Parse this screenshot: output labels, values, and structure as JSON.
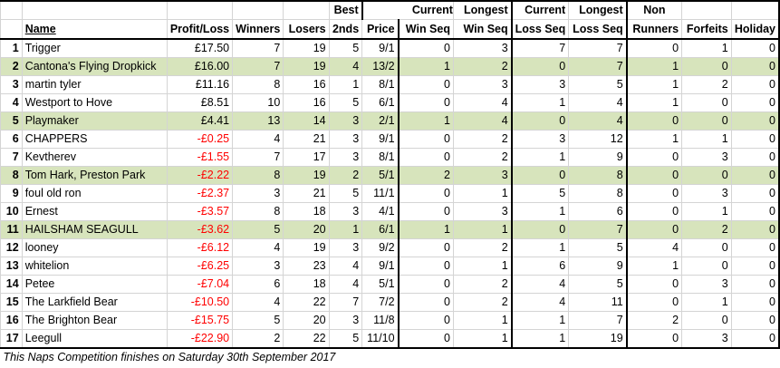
{
  "headers": {
    "row1": {
      "best": "Best",
      "current_win": "Current",
      "longest_win": "Longest",
      "current_loss": "Current",
      "longest_loss": "Longest",
      "non": "Non"
    },
    "row2": {
      "name": "Name",
      "profit_loss": "Profit/Loss",
      "winners": "Winners",
      "losers": "Losers",
      "seconds": "2nds",
      "price": "Price",
      "win_seq": "Win Seq",
      "win_seq2": "Win Seq",
      "loss_seq": "Loss Seq",
      "loss_seq2": "Loss Seq",
      "runners": "Runners",
      "forfeits": "Forfeits",
      "holiday": "Holiday"
    }
  },
  "rows": [
    {
      "rank": "1",
      "name": "Trigger",
      "pl": "£17.50",
      "neg": false,
      "winners": "7",
      "losers": "19",
      "seconds": "5",
      "price": "9/1",
      "cur_win": "0",
      "long_win": "3",
      "cur_loss": "7",
      "long_loss": "7",
      "non_runners": "0",
      "forfeits": "1",
      "holiday": "0",
      "green": false
    },
    {
      "rank": "2",
      "name": "Cantona's Flying Dropkick",
      "pl": "£16.00",
      "neg": false,
      "winners": "7",
      "losers": "19",
      "seconds": "4",
      "price": "13/2",
      "cur_win": "1",
      "long_win": "2",
      "cur_loss": "0",
      "long_loss": "7",
      "non_runners": "1",
      "forfeits": "0",
      "holiday": "0",
      "green": true
    },
    {
      "rank": "3",
      "name": "martin tyler",
      "pl": "£11.16",
      "neg": false,
      "winners": "8",
      "losers": "16",
      "seconds": "1",
      "price": "8/1",
      "cur_win": "0",
      "long_win": "3",
      "cur_loss": "3",
      "long_loss": "5",
      "non_runners": "1",
      "forfeits": "2",
      "holiday": "0",
      "green": false
    },
    {
      "rank": "4",
      "name": "Westport to Hove",
      "pl": "£8.51",
      "neg": false,
      "winners": "10",
      "losers": "16",
      "seconds": "5",
      "price": "6/1",
      "cur_win": "0",
      "long_win": "4",
      "cur_loss": "1",
      "long_loss": "4",
      "non_runners": "1",
      "forfeits": "0",
      "holiday": "0",
      "green": false
    },
    {
      "rank": "5",
      "name": "Playmaker",
      "pl": "£4.41",
      "neg": false,
      "winners": "13",
      "losers": "14",
      "seconds": "3",
      "price": "2/1",
      "cur_win": "1",
      "long_win": "4",
      "cur_loss": "0",
      "long_loss": "4",
      "non_runners": "0",
      "forfeits": "0",
      "holiday": "0",
      "green": true
    },
    {
      "rank": "6",
      "name": "CHAPPERS",
      "pl": "-£0.25",
      "neg": true,
      "winners": "4",
      "losers": "21",
      "seconds": "3",
      "price": "9/1",
      "cur_win": "0",
      "long_win": "2",
      "cur_loss": "3",
      "long_loss": "12",
      "non_runners": "1",
      "forfeits": "1",
      "holiday": "0",
      "green": false
    },
    {
      "rank": "7",
      "name": "Kevtherev",
      "pl": "-£1.55",
      "neg": true,
      "winners": "7",
      "losers": "17",
      "seconds": "3",
      "price": "8/1",
      "cur_win": "0",
      "long_win": "2",
      "cur_loss": "1",
      "long_loss": "9",
      "non_runners": "0",
      "forfeits": "3",
      "holiday": "0",
      "green": false
    },
    {
      "rank": "8",
      "name": "Tom Hark, Preston Park",
      "pl": "-£2.22",
      "neg": true,
      "winners": "8",
      "losers": "19",
      "seconds": "2",
      "price": "5/1",
      "cur_win": "2",
      "long_win": "3",
      "cur_loss": "0",
      "long_loss": "8",
      "non_runners": "0",
      "forfeits": "0",
      "holiday": "0",
      "green": true
    },
    {
      "rank": "9",
      "name": "foul old ron",
      "pl": "-£2.37",
      "neg": true,
      "winners": "3",
      "losers": "21",
      "seconds": "5",
      "price": "11/1",
      "cur_win": "0",
      "long_win": "1",
      "cur_loss": "5",
      "long_loss": "8",
      "non_runners": "0",
      "forfeits": "3",
      "holiday": "0",
      "green": false
    },
    {
      "rank": "10",
      "name": "Ernest",
      "pl": "-£3.57",
      "neg": true,
      "winners": "8",
      "losers": "18",
      "seconds": "3",
      "price": "4/1",
      "cur_win": "0",
      "long_win": "3",
      "cur_loss": "1",
      "long_loss": "6",
      "non_runners": "0",
      "forfeits": "1",
      "holiday": "0",
      "green": false
    },
    {
      "rank": "11",
      "name": "HAILSHAM SEAGULL",
      "pl": "-£3.62",
      "neg": true,
      "winners": "5",
      "losers": "20",
      "seconds": "1",
      "price": "6/1",
      "cur_win": "1",
      "long_win": "1",
      "cur_loss": "0",
      "long_loss": "7",
      "non_runners": "0",
      "forfeits": "2",
      "holiday": "0",
      "green": true
    },
    {
      "rank": "12",
      "name": "looney",
      "pl": "-£6.12",
      "neg": true,
      "winners": "4",
      "losers": "19",
      "seconds": "3",
      "price": "9/2",
      "cur_win": "0",
      "long_win": "2",
      "cur_loss": "1",
      "long_loss": "5",
      "non_runners": "4",
      "forfeits": "0",
      "holiday": "0",
      "green": false
    },
    {
      "rank": "13",
      "name": "whitelion",
      "pl": "-£6.25",
      "neg": true,
      "winners": "3",
      "losers": "23",
      "seconds": "4",
      "price": "9/1",
      "cur_win": "0",
      "long_win": "1",
      "cur_loss": "6",
      "long_loss": "9",
      "non_runners": "1",
      "forfeits": "0",
      "holiday": "0",
      "green": false
    },
    {
      "rank": "14",
      "name": "Petee",
      "pl": "-£7.04",
      "neg": true,
      "winners": "6",
      "losers": "18",
      "seconds": "4",
      "price": "5/1",
      "cur_win": "0",
      "long_win": "2",
      "cur_loss": "4",
      "long_loss": "5",
      "non_runners": "0",
      "forfeits": "3",
      "holiday": "0",
      "green": false
    },
    {
      "rank": "15",
      "name": "The Larkfield Bear",
      "pl": "-£10.50",
      "neg": true,
      "winners": "4",
      "losers": "22",
      "seconds": "7",
      "price": "7/2",
      "cur_win": "0",
      "long_win": "2",
      "cur_loss": "4",
      "long_loss": "11",
      "non_runners": "0",
      "forfeits": "1",
      "holiday": "0",
      "green": false
    },
    {
      "rank": "16",
      "name": "The Brighton Bear",
      "pl": "-£15.75",
      "neg": true,
      "winners": "5",
      "losers": "20",
      "seconds": "3",
      "price": "11/8",
      "cur_win": "0",
      "long_win": "1",
      "cur_loss": "1",
      "long_loss": "7",
      "non_runners": "2",
      "forfeits": "0",
      "holiday": "0",
      "green": false
    },
    {
      "rank": "17",
      "name": "Leegull",
      "pl": "-£22.90",
      "neg": true,
      "winners": "2",
      "losers": "22",
      "seconds": "5",
      "price": "11/10",
      "cur_win": "0",
      "long_win": "1",
      "cur_loss": "1",
      "long_loss": "19",
      "non_runners": "0",
      "forfeits": "3",
      "holiday": "0",
      "green": false
    }
  ],
  "footer": "This Naps Competition finishes on Saturday 30th September 2017"
}
